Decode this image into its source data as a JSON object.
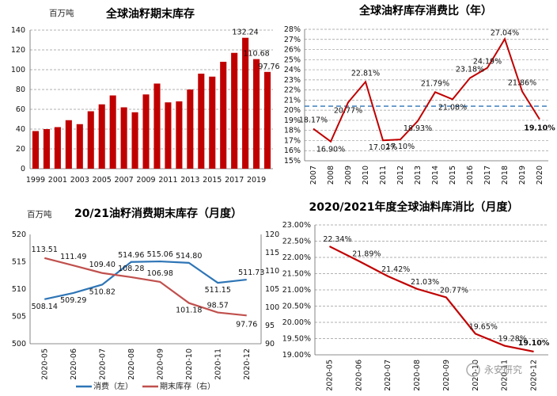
{
  "chart_data": [
    {
      "type": "bar",
      "title": "全球油籽期末库存",
      "ylabel": "百万吨",
      "ylim": [
        0,
        140
      ],
      "yticks": [
        0,
        20,
        40,
        60,
        80,
        100,
        120,
        140
      ],
      "xticklabels": [
        "1999",
        "2001",
        "2003",
        "2005",
        "2007",
        "2009",
        "2011",
        "2013",
        "2015",
        "2017",
        "2019"
      ],
      "categories": [
        "1999",
        "2000",
        "2001",
        "2002",
        "2003",
        "2004",
        "2005",
        "2006",
        "2007",
        "2008",
        "2009",
        "2010",
        "2011",
        "2012",
        "2013",
        "2014",
        "2015",
        "2016",
        "2017",
        "2018",
        "2019",
        "2020"
      ],
      "values": [
        38,
        40,
        42,
        49,
        45,
        58,
        65,
        74,
        62,
        57,
        75,
        86,
        67,
        68,
        80,
        96,
        93,
        108,
        117,
        132.24,
        110.68,
        97.76
      ],
      "data_labels": {
        "19": "132.24",
        "20": "110.68",
        "21": "97.76"
      },
      "bar_color": "#C00000",
      "grid": "horizontal-dashed"
    },
    {
      "type": "line",
      "title": "全球油籽库存消费比（年）",
      "categories": [
        "2007",
        "2008",
        "2009",
        "2010",
        "2011",
        "2012",
        "2013",
        "2014",
        "2015",
        "2016",
        "2017",
        "2018",
        "2019",
        "2020"
      ],
      "values": [
        18.17,
        16.9,
        20.77,
        22.81,
        17.02,
        17.1,
        18.93,
        21.79,
        21.08,
        23.18,
        24.19,
        27.04,
        21.86,
        19.1
      ],
      "labels": [
        "18.17%",
        "16.90%",
        "20.77%",
        "22.81%",
        "17.02%",
        "17.10%",
        "18.93%",
        "21.79%",
        "21.08%",
        "23.18%",
        "24.19%",
        "27.04%",
        "21.86%",
        "19.10%"
      ],
      "ylim": [
        15,
        28
      ],
      "yticks": [
        "15%",
        "16%",
        "17%",
        "18%",
        "19%",
        "20%",
        "21%",
        "22%",
        "23%",
        "24%",
        "25%",
        "26%",
        "27%",
        "28%"
      ],
      "reference_line": 20.4,
      "line_color": "#C00000",
      "ref_color": "#2E75B6",
      "grid": "horizontal-dashed"
    },
    {
      "type": "line",
      "title": "20/21油籽消费期末库存（月度）",
      "ylabel": "百万吨",
      "categories": [
        "2020-05",
        "2020-06",
        "2020-07",
        "2020-08",
        "2020-09",
        "2020-10",
        "2020-11",
        "2020-12"
      ],
      "yticks_left": [
        "500",
        "505",
        "510",
        "515",
        "520"
      ],
      "yticks_right": [
        "90",
        "95",
        "100",
        "105",
        "110",
        "115",
        "120"
      ],
      "ylim_left": [
        500,
        520
      ],
      "ylim_right": [
        90,
        120
      ],
      "series": [
        {
          "name": "消费（左）",
          "axis": "left",
          "color": "#2E75B6",
          "values": [
            508.14,
            509.29,
            510.82,
            514.96,
            515.06,
            514.8,
            511.15,
            511.73
          ],
          "labels": [
            "508.14",
            "509.29",
            "510.82",
            "514.96",
            "515.06",
            "514.80",
            "511.15",
            "511.73"
          ]
        },
        {
          "name": "期末库存（右）",
          "axis": "right",
          "color": "#C0504D",
          "values": [
            113.51,
            111.49,
            109.4,
            108.28,
            106.98,
            101.18,
            98.57,
            97.76
          ],
          "labels": [
            "113.51",
            "111.49",
            "109.40",
            "108.28",
            "106.98",
            "101.18",
            "98.57",
            "97.76"
          ]
        }
      ]
    },
    {
      "type": "line",
      "title": "2020/2021年度全球油料库消比（月度）",
      "categories": [
        "2020-05",
        "2020-06",
        "2020-07",
        "2020-08",
        "2020-09",
        "2020-10",
        "2020-11",
        "2020-12"
      ],
      "values": [
        22.34,
        21.89,
        21.42,
        21.03,
        20.77,
        19.65,
        19.28,
        19.1
      ],
      "labels": [
        "22.34%",
        "21.89%",
        "21.42%",
        "21.03%",
        "20.77%",
        "19.65%",
        "19.28%",
        "19.10%"
      ],
      "ylim": [
        19.0,
        23.0
      ],
      "yticks": [
        "19.00%",
        "19.50%",
        "20.00%",
        "20.50%",
        "21.00%",
        "21.50%",
        "22.00%",
        "22.50%",
        "23.00%"
      ],
      "line_color": "#C00000",
      "grid": "horizontal-dashed"
    }
  ],
  "watermark": "永安研究"
}
